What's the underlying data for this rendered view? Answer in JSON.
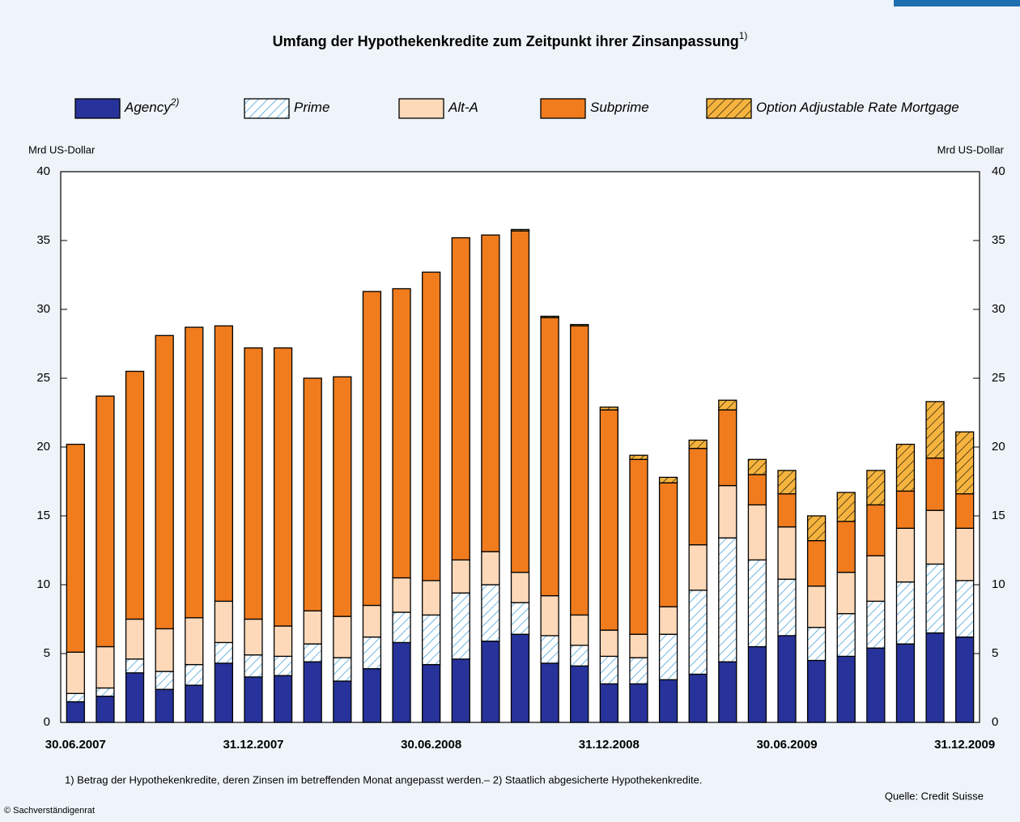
{
  "chart_data": {
    "type": "stacked_bar",
    "title": "Umfang der Hypothekenkredite zum Zeitpunkt ihrer Zinsanpassung",
    "title_note": "1)",
    "y_label": "Mrd US-Dollar",
    "y2_label": "Mrd US-Dollar",
    "categories": [
      "30.06.2007",
      null,
      null,
      null,
      null,
      null,
      "31.12.2007",
      null,
      null,
      null,
      null,
      null,
      "30.06.2008",
      null,
      null,
      null,
      null,
      null,
      "31.12.2008",
      null,
      null,
      null,
      null,
      null,
      "30.06.2009",
      null,
      null,
      null,
      null,
      null,
      "31.12.2009"
    ],
    "series": [
      {
        "name": "Agency",
        "name_note": "2)",
        "color": "#27339a",
        "hatch": false,
        "values": [
          1.5,
          1.9,
          3.6,
          2.4,
          2.7,
          4.3,
          3.3,
          3.4,
          4.4,
          3.0,
          3.9,
          5.8,
          4.2,
          4.6,
          5.9,
          6.4,
          4.3,
          4.1,
          2.8,
          2.8,
          3.1,
          3.5,
          4.4,
          5.5,
          6.3,
          4.5,
          4.8,
          5.4,
          5.7,
          6.5,
          6.2
        ]
      },
      {
        "name": "Prime",
        "color": "#6db6e3",
        "hatch": true,
        "values": [
          0.6,
          0.6,
          1.0,
          1.3,
          1.5,
          1.5,
          1.6,
          1.4,
          1.3,
          1.7,
          2.3,
          2.2,
          3.6,
          4.8,
          4.1,
          2.3,
          2.0,
          1.5,
          2.0,
          1.9,
          3.3,
          6.1,
          9.0,
          6.3,
          4.1,
          2.4,
          3.1,
          3.4,
          4.5,
          5.0,
          4.1
        ]
      },
      {
        "name": "Alt-A",
        "color": "#fdd9b9",
        "hatch": false,
        "values": [
          3.0,
          3.0,
          2.9,
          3.1,
          3.4,
          3.0,
          2.6,
          2.2,
          2.4,
          3.0,
          2.3,
          2.5,
          2.5,
          2.4,
          2.4,
          2.2,
          2.9,
          2.2,
          1.9,
          1.7,
          2.0,
          3.3,
          3.8,
          4.0,
          3.8,
          3.0,
          3.0,
          3.3,
          3.9,
          3.9,
          3.8
        ]
      },
      {
        "name": "Subprime",
        "color": "#f07c1e",
        "hatch": false,
        "values": [
          15.1,
          18.2,
          18.0,
          21.3,
          21.1,
          20.0,
          19.7,
          20.2,
          16.9,
          17.4,
          22.8,
          21.0,
          22.4,
          23.4,
          23.0,
          24.8,
          20.2,
          21.0,
          16.0,
          12.7,
          9.0,
          7.0,
          5.5,
          2.2,
          2.4,
          3.3,
          3.7,
          3.7,
          2.7,
          3.8,
          2.5
        ]
      },
      {
        "name": "Option Adjustable Rate Mortgage",
        "color": "#f6b43f",
        "hatch": true,
        "values": [
          0,
          0,
          0,
          0,
          0,
          0,
          0,
          0,
          0,
          0,
          0,
          0,
          0,
          0,
          0,
          0.1,
          0.1,
          0.1,
          0.2,
          0.3,
          0.4,
          0.6,
          0.7,
          1.1,
          1.7,
          1.8,
          2.1,
          2.5,
          3.4,
          4.1,
          4.5
        ]
      }
    ],
    "ylim": [
      0,
      40
    ],
    "yticks": [
      0,
      5,
      10,
      15,
      20,
      25,
      30,
      35,
      40
    ],
    "y2lim": [
      0,
      40
    ],
    "y2ticks": [
      0,
      5,
      10,
      15,
      20,
      25,
      30,
      35,
      40
    ],
    "footnote": "1) Betrag der Hypothekenkredite, deren Zinsen im betreffenden Monat angepasst werden.– 2) Staatlich abgesicherte Hypothekenkredite.",
    "source": "Quelle: Credit Suisse",
    "copyright": "© Sachverständigenrat"
  }
}
